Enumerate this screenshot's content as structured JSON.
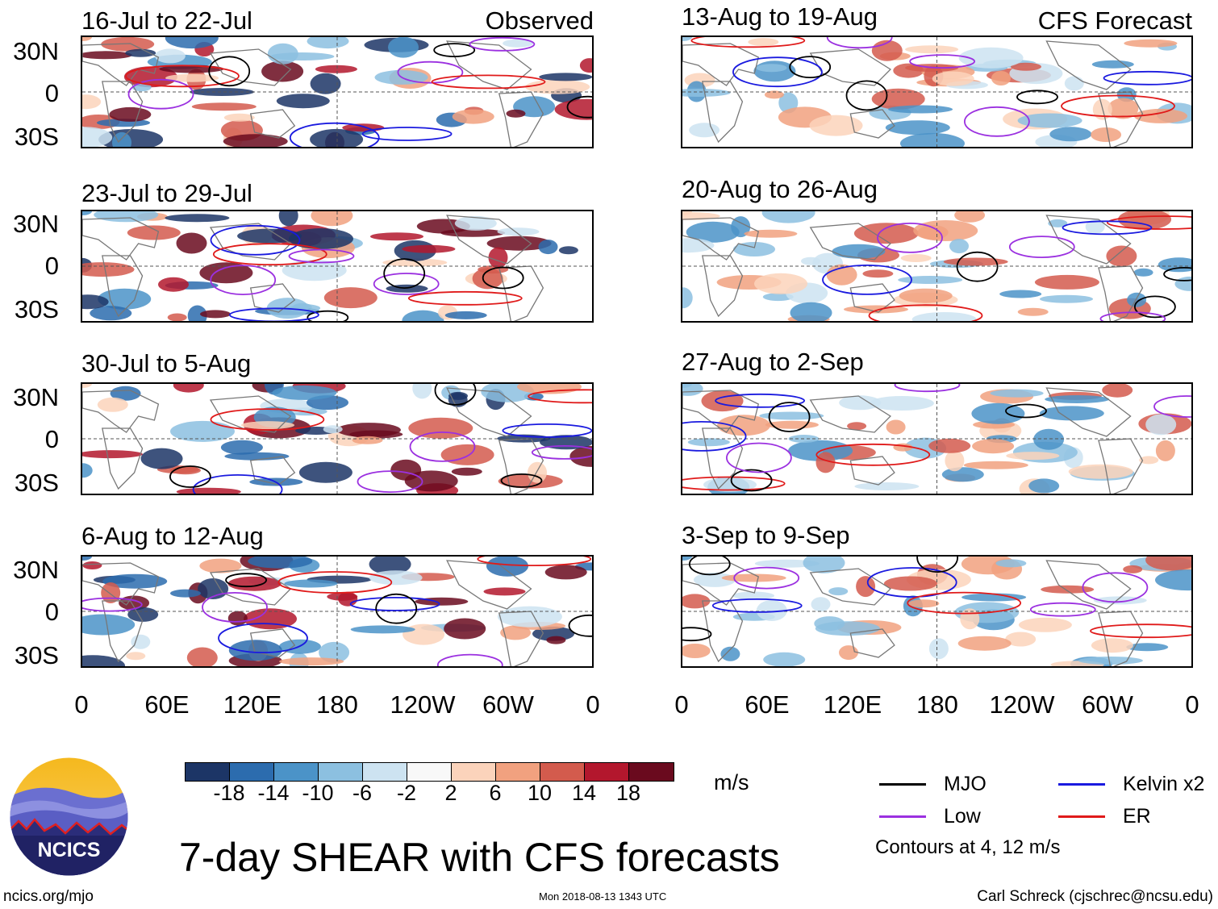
{
  "header": {
    "observed_label": "Observed",
    "forecast_label": "CFS Forecast"
  },
  "panels_observed": [
    {
      "period": "16-Jul to 22-Jul"
    },
    {
      "period": "23-Jul to 29-Jul"
    },
    {
      "period": "30-Jul to 5-Aug"
    },
    {
      "period": "6-Aug to 12-Aug"
    }
  ],
  "panels_forecast": [
    {
      "period": "13-Aug to 19-Aug"
    },
    {
      "period": "20-Aug to 26-Aug"
    },
    {
      "period": "27-Aug to 2-Sep"
    },
    {
      "period": "3-Sep to 9-Sep"
    }
  ],
  "axes": {
    "y_ticks": [
      "30N",
      "0",
      "30S"
    ],
    "x_ticks": [
      "0",
      "60E",
      "120E",
      "180",
      "120W",
      "60W",
      "0"
    ]
  },
  "colorbar": {
    "labels": [
      "-18",
      "-14",
      "-10",
      "-6",
      "-2",
      "2",
      "6",
      "10",
      "14",
      "18"
    ],
    "colors": [
      "#1c3566",
      "#2c6cae",
      "#4b93c8",
      "#8cc0e0",
      "#cde3f1",
      "#f8f8f8",
      "#fbd3bb",
      "#f1a17f",
      "#d35b4d",
      "#b3172d",
      "#6a0a1e"
    ],
    "units": "m/s"
  },
  "legend": {
    "mjo": {
      "label": "MJO",
      "color": "#000000"
    },
    "kelvin": {
      "label": "Kelvin x2",
      "color": "#1a1adf"
    },
    "low": {
      "label": "Low",
      "color": "#9b30e0"
    },
    "er": {
      "label": "ER",
      "color": "#e01a1a"
    },
    "contours_note": "Contours at 4, 12 m/s"
  },
  "logo_text": "NCICS",
  "title": "7-day SHEAR with CFS forecasts",
  "footer": {
    "website": "ncics.org/mjo",
    "timestamp": "Mon 2018-08-13 1343 UTC",
    "author": "Carl Schreck (cjschrec@ncsu.edu)"
  }
}
